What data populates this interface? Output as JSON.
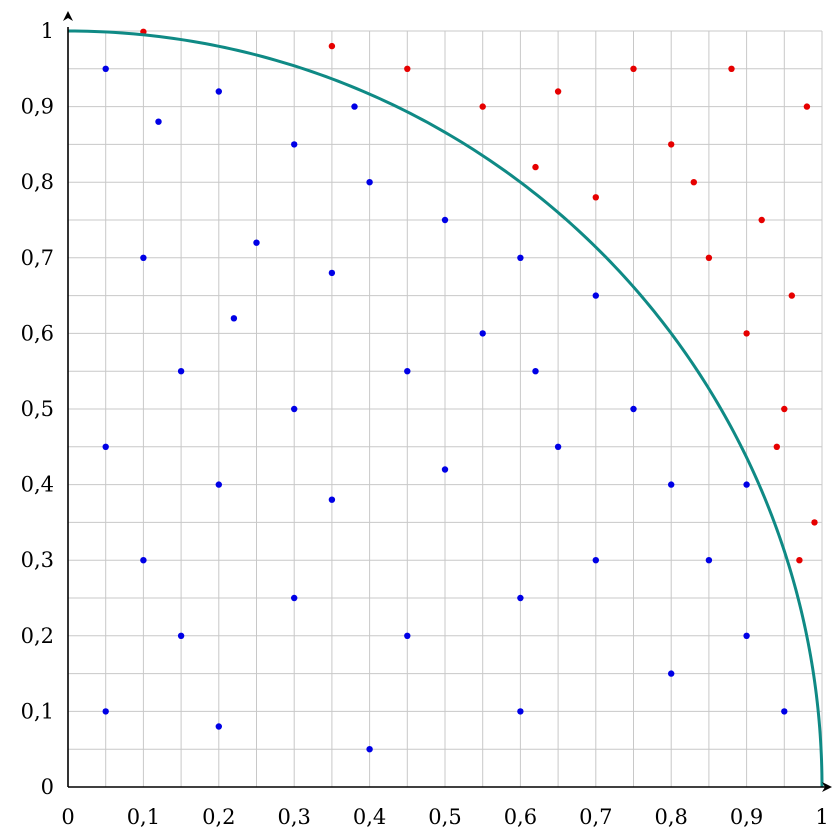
{
  "chart_data": {
    "type": "scatter",
    "title": "",
    "xlabel": "",
    "ylabel": "",
    "xlim": [
      0,
      1
    ],
    "ylim": [
      0,
      1
    ],
    "grid": true,
    "grid_step": 0.05,
    "x_ticks": [
      {
        "value": 0,
        "label": "0"
      },
      {
        "value": 0.1,
        "label": "0,1"
      },
      {
        "value": 0.2,
        "label": "0,2"
      },
      {
        "value": 0.3,
        "label": "0,3"
      },
      {
        "value": 0.4,
        "label": "0,4"
      },
      {
        "value": 0.5,
        "label": "0,5"
      },
      {
        "value": 0.6,
        "label": "0,6"
      },
      {
        "value": 0.7,
        "label": "0,7"
      },
      {
        "value": 0.8,
        "label": "0,8"
      },
      {
        "value": 0.9,
        "label": "0,9"
      },
      {
        "value": 1,
        "label": "1"
      }
    ],
    "y_ticks": [
      {
        "value": 0,
        "label": "0"
      },
      {
        "value": 0.1,
        "label": "0,1"
      },
      {
        "value": 0.2,
        "label": "0,2"
      },
      {
        "value": 0.3,
        "label": "0,3"
      },
      {
        "value": 0.4,
        "label": "0,4"
      },
      {
        "value": 0.5,
        "label": "0,5"
      },
      {
        "value": 0.6,
        "label": "0,6"
      },
      {
        "value": 0.7,
        "label": "0,7"
      },
      {
        "value": 0.8,
        "label": "0,8"
      },
      {
        "value": 0.9,
        "label": "0,9"
      },
      {
        "value": 1,
        "label": "1"
      }
    ],
    "curve": {
      "equation": "x^2 + y^2 = 1",
      "color": "#0f8a85"
    },
    "colors": {
      "inside_points": "#0000e6",
      "outside_points": "#e60000",
      "grid": "#c8c8c8",
      "axes": "#000000"
    },
    "series": [
      {
        "points": [
          [
            0.05,
            0.95
          ],
          [
            0.12,
            0.88
          ],
          [
            0.2,
            0.92
          ],
          [
            0.3,
            0.85
          ],
          [
            0.4,
            0.8
          ],
          [
            0.1,
            0.7
          ],
          [
            0.25,
            0.72
          ],
          [
            0.35,
            0.68
          ],
          [
            0.5,
            0.75
          ],
          [
            0.6,
            0.7
          ],
          [
            0.55,
            0.6
          ],
          [
            0.45,
            0.55
          ],
          [
            0.3,
            0.5
          ],
          [
            0.15,
            0.55
          ],
          [
            0.05,
            0.45
          ],
          [
            0.2,
            0.4
          ],
          [
            0.35,
            0.38
          ],
          [
            0.5,
            0.42
          ],
          [
            0.65,
            0.45
          ],
          [
            0.75,
            0.5
          ],
          [
            0.8,
            0.4
          ],
          [
            0.7,
            0.3
          ],
          [
            0.6,
            0.25
          ],
          [
            0.45,
            0.2
          ],
          [
            0.3,
            0.25
          ],
          [
            0.15,
            0.2
          ],
          [
            0.05,
            0.1
          ],
          [
            0.2,
            0.08
          ],
          [
            0.4,
            0.05
          ],
          [
            0.6,
            0.1
          ],
          [
            0.8,
            0.15
          ],
          [
            0.9,
            0.2
          ],
          [
            0.95,
            0.1
          ],
          [
            0.85,
            0.3
          ],
          [
            0.9,
            0.4
          ],
          [
            0.7,
            0.65
          ],
          [
            0.62,
            0.55
          ],
          [
            0.38,
            0.9
          ],
          [
            0.22,
            0.62
          ],
          [
            0.1,
            0.3
          ]
        ]
      },
      {
        "points": [
          [
            0.1,
            0.999
          ],
          [
            0.35,
            0.98
          ],
          [
            0.45,
            0.95
          ],
          [
            0.55,
            0.9
          ],
          [
            0.62,
            0.82
          ],
          [
            0.7,
            0.78
          ],
          [
            0.75,
            0.95
          ],
          [
            0.8,
            0.85
          ],
          [
            0.85,
            0.7
          ],
          [
            0.9,
            0.6
          ],
          [
            0.95,
            0.5
          ],
          [
            0.92,
            0.75
          ],
          [
            0.98,
            0.9
          ],
          [
            0.88,
            0.95
          ],
          [
            0.65,
            0.92
          ],
          [
            0.83,
            0.8
          ],
          [
            0.96,
            0.65
          ],
          [
            0.99,
            0.35
          ],
          [
            0.97,
            0.3
          ],
          [
            0.94,
            0.45
          ]
        ]
      }
    ]
  }
}
